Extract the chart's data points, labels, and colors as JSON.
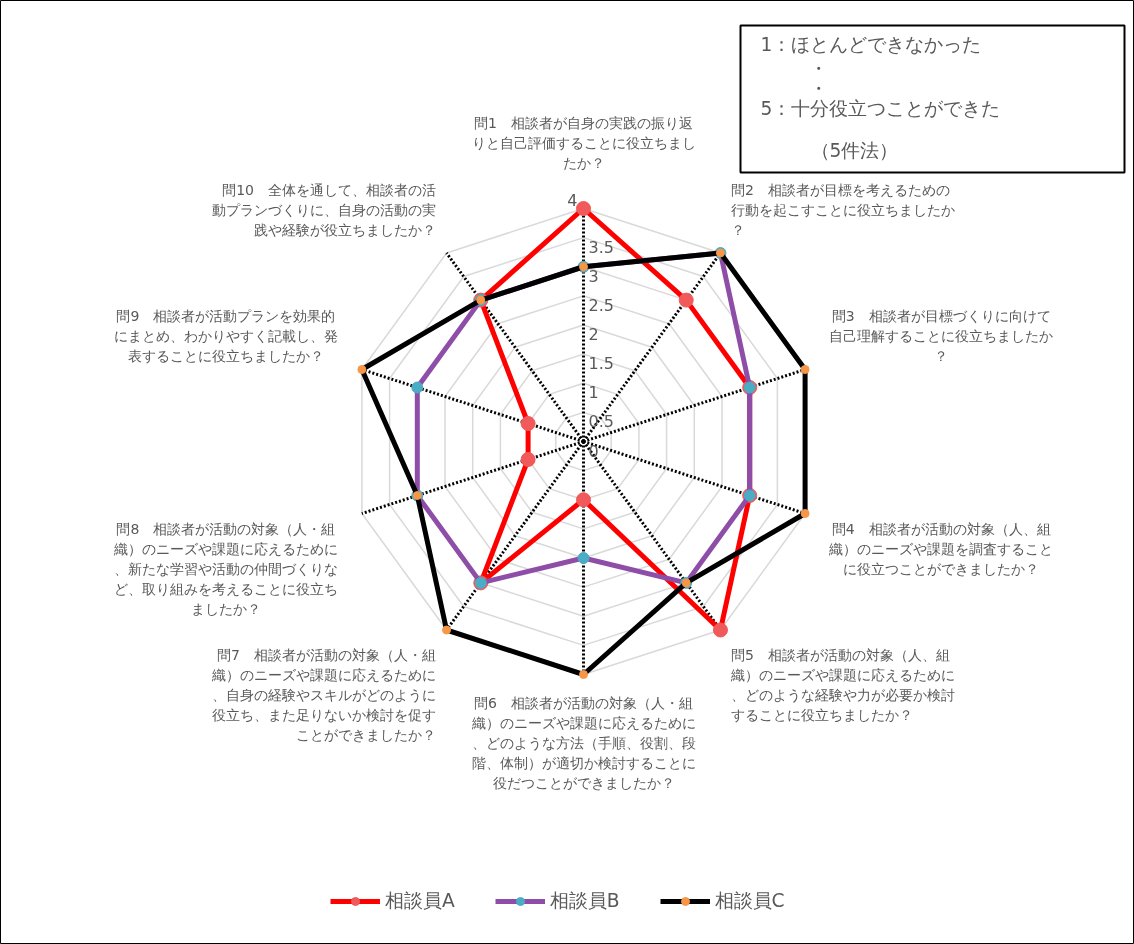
{
  "chart_data": {
    "type": "radar",
    "categories": [
      "問1　相談者が自身の実践の振り返りと自己評価することに役立ちましたか？",
      "問2　相談者が目標を考えるための行動を起こすことに役立ちましたか？",
      "問3　相談者が目標づくりに向けて自己理解することに役立ちましたか？",
      "問4　相談者が活動の対象（人、組織）のニーズや課題を調査することに役立つことができましたか？",
      "問5　相談者が活動の対象（人、組織）のニーズや課題に応えるために、どのような経験や力が必要か検討することに役立ちましたか？",
      "問6　相談者が活動の対象（人・組織）のニーズや課題に応えるために、どのような方法（手順、役割、段階、体制）が適切か検討することに役だつことができましたか？",
      "問7　相談者が活動の対象（人・組織）のニーズや課題に応えるために、自身の経験やスキルがどのように役立ち、また足りないか検討を促すことができましたか？",
      "問8　相談者が活動の対象（人・組織）のニーズや課題に応えるために、新たな学習や活動の仲間づくりなど、取り組みを考えることに役立ちましたか？",
      "問9　相談者が活動プランを効果的にまとめ、わかりやすく記載し、発表することに役立ちましたか？",
      "問10　全体を通して、相談者の活動プランづくりに、自身の活動の実践や経験が役立ちましたか？"
    ],
    "series": [
      {
        "name": "相談員A",
        "color": "#ff0000",
        "values": [
          4,
          3,
          3,
          3,
          4,
          1,
          3,
          1,
          1,
          3
        ]
      },
      {
        "name": "相談員B",
        "color": "#8e4ea8",
        "values": [
          3,
          4,
          3,
          3,
          3,
          2,
          3,
          3,
          3,
          3
        ]
      },
      {
        "name": "相談員C",
        "color": "#000000",
        "values": [
          3,
          4,
          4,
          4,
          3,
          4,
          4,
          3,
          4,
          3
        ]
      }
    ],
    "ylim": [
      0,
      4
    ],
    "yticks": [
      0,
      0.5,
      1,
      1.5,
      2,
      2.5,
      3,
      3.5,
      4
    ],
    "grid": true,
    "legend": "bottom",
    "marker": "circle",
    "line_style": "solid",
    "annotations": [
      "1：ほとんどできなかった",
      "・",
      "・",
      "5：十分役立つことができた",
      "（5件法）"
    ]
  }
}
